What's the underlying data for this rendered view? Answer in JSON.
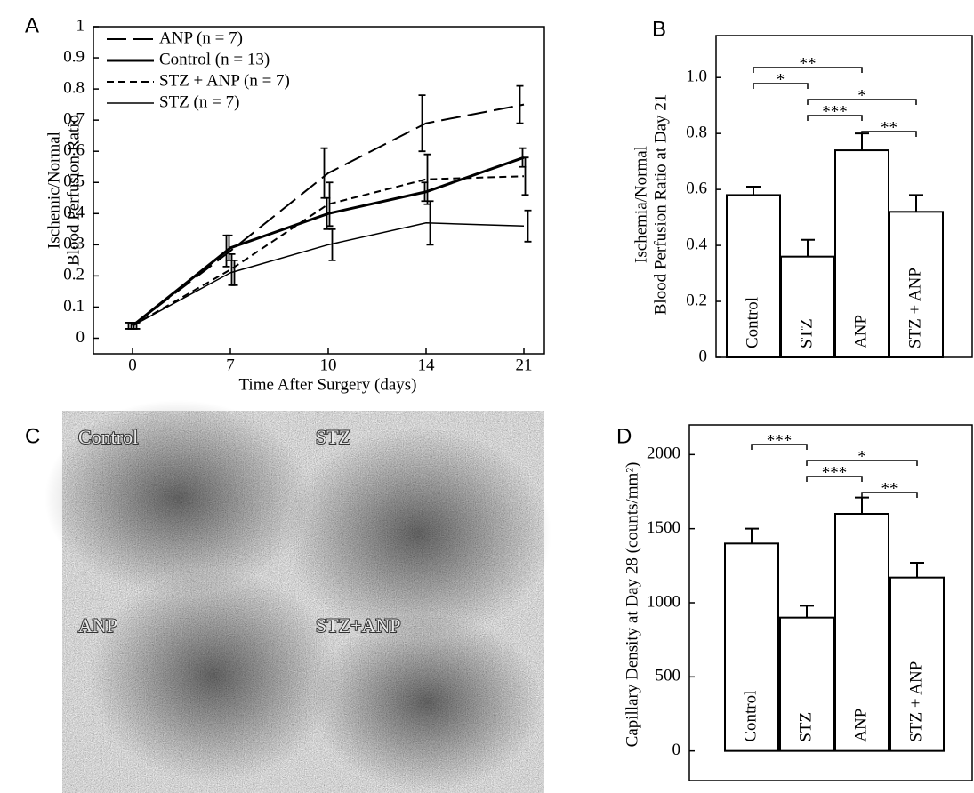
{
  "chart_data": [
    {
      "type": "line",
      "panel": "A",
      "ylabel": [
        "Ischemic/Normal",
        "Blood Perfusion Ratio"
      ],
      "xlabel": "Time After Surgery  (days)",
      "categories": [
        "0",
        "7",
        "10",
        "14",
        "21"
      ],
      "ylim": [
        -0.05,
        1
      ],
      "yticks": [
        0,
        0.1,
        0.2,
        0.3,
        0.4,
        0.5,
        0.6,
        0.7,
        0.8,
        0.9,
        1
      ],
      "legend": "upper left",
      "series": [
        {
          "name": "ANP (n = 7)",
          "color": "#000000",
          "line_style": "long-dash",
          "line_width": 2,
          "values": [
            0.04,
            0.28,
            0.53,
            0.69,
            0.75
          ],
          "errors": [
            0.01,
            0.05,
            0.08,
            0.09,
            0.06
          ]
        },
        {
          "name": "Control (n = 13)",
          "color": "#000000",
          "line_style": "solid",
          "line_width": 3,
          "values": [
            0.04,
            0.29,
            0.4,
            0.47,
            0.58
          ],
          "errors": [
            0.01,
            0.04,
            0.05,
            0.03,
            0.03
          ]
        },
        {
          "name": "STZ + ANP (n = 7)",
          "color": "#000000",
          "line_style": "short-dash",
          "line_width": 2,
          "values": [
            0.04,
            0.22,
            0.43,
            0.51,
            0.52
          ],
          "errors": [
            0.01,
            0.05,
            0.07,
            0.08,
            0.06
          ]
        },
        {
          "name": "STZ (n = 7)",
          "color": "#000000",
          "line_style": "solid",
          "line_width": 1.5,
          "values": [
            0.04,
            0.21,
            0.3,
            0.37,
            0.36
          ],
          "errors": [
            0.01,
            0.04,
            0.05,
            0.07,
            0.05
          ]
        }
      ]
    },
    {
      "type": "bar",
      "panel": "B",
      "ylabel": [
        "Ischemia/Normal",
        "Blood Perfusion Ratio at Day 21"
      ],
      "categories": [
        "Control",
        "STZ",
        "ANP",
        "STZ + ANP"
      ],
      "values": [
        0.58,
        0.36,
        0.74,
        0.52
      ],
      "errors": [
        0.03,
        0.06,
        0.06,
        0.06
      ],
      "color": "#ffffff",
      "ylim": [
        0,
        1.15
      ],
      "yticks": [
        0,
        0.2,
        0.4,
        0.6,
        0.8,
        {
          "value": 1,
          "label": "1.0"
        }
      ],
      "significance": [
        {
          "from": 0,
          "to": 2,
          "label": "**"
        },
        {
          "from": 0,
          "to": 1,
          "label": "*"
        },
        {
          "from": 1,
          "to": 3,
          "label": "*"
        },
        {
          "from": 1,
          "to": 2,
          "label": "***"
        },
        {
          "from": 2,
          "to": 3,
          "label": "**"
        }
      ]
    },
    {
      "type": "bar",
      "panel": "D",
      "ylabel": [
        "Capillary Density at Day 28 (counts/mm²)"
      ],
      "categories": [
        "Control",
        "STZ",
        "ANP",
        "STZ + ANP"
      ],
      "values": [
        1400,
        900,
        1600,
        1170
      ],
      "errors": [
        100,
        80,
        110,
        100
      ],
      "color": "#ffffff",
      "ylim": [
        -200,
        2200
      ],
      "yticks": [
        0,
        500,
        1000,
        1500,
        2000
      ],
      "significance": [
        {
          "from": 0,
          "to": 1,
          "label": "***"
        },
        {
          "from": 1,
          "to": 3,
          "label": "*"
        },
        {
          "from": 1,
          "to": 2,
          "label": "***"
        },
        {
          "from": 2,
          "to": 3,
          "label": "**"
        }
      ]
    }
  ],
  "image_panel": {
    "panel": "C",
    "labels": [
      "Control",
      "STZ",
      "ANP",
      "STZ+ANP"
    ]
  }
}
